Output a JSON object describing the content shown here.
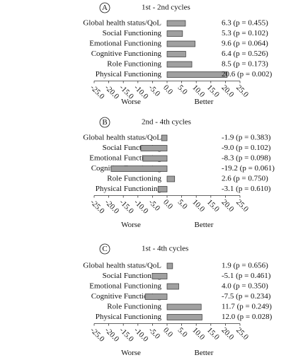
{
  "chart_data": [
    {
      "type": "barh",
      "panel": "A",
      "title": "1st - 2nd cycles",
      "categories": [
        "Global health status/QoL",
        "Social Functioning",
        "Emotional Functioning",
        "Cognitive Functioning",
        "Role Functioning",
        "Physical Functioning"
      ],
      "values": [
        6.3,
        5.3,
        9.6,
        6.4,
        8.5,
        20.6
      ],
      "value_labels": [
        "6.3 (p = 0.455)",
        "5.3 (p = 0.102)",
        "9.6 (p = 0.064)",
        "6.4 (p = 0.526)",
        "8.5 (p = 0.173)",
        "20.6 (p = 0.002)"
      ],
      "color": "#a0a0a0",
      "xlim": [
        -25,
        25
      ],
      "xticks": [
        {
          "value": -25,
          "label": "-25.0"
        },
        {
          "value": -20,
          "label": "-20.0"
        },
        {
          "value": -15,
          "label": "-15.0"
        },
        {
          "value": -10,
          "label": "-10.0"
        },
        {
          "value": -5,
          "label": "-5.0"
        },
        {
          "value": 0,
          "label": "0.0"
        },
        {
          "value": 5,
          "label": "5.0"
        },
        {
          "value": 10,
          "label": "10.0"
        },
        {
          "value": 15,
          "label": "15.0"
        },
        {
          "value": 20,
          "label": "20.0"
        },
        {
          "value": 25,
          "label": "25.0"
        }
      ],
      "xlabel_left": "Worse",
      "xlabel_right": "Better"
    },
    {
      "type": "barh",
      "panel": "B",
      "title": "2nd - 4th cycles",
      "categories": [
        "Global health status/QoL",
        "Social Functioning",
        "Emotional Functioning",
        "Cognitive Functioning",
        "Role Functioning",
        "Physical Functioning"
      ],
      "values": [
        -1.9,
        -9.0,
        -8.3,
        -19.2,
        2.6,
        -3.1
      ],
      "value_labels": [
        "-1.9 (p = 0.383)",
        "-9.0 (p = 0.102)",
        "-8.3 (p = 0.098)",
        "-19.2 (p = 0.061)",
        "2.6 (p = 0.750)",
        "-3.1 (p = 0.610)"
      ],
      "color": "#a0a0a0",
      "xlim": [
        -25,
        25
      ],
      "xticks": [
        {
          "value": -25,
          "label": "-25.0"
        },
        {
          "value": -20,
          "label": "-20.0"
        },
        {
          "value": -15,
          "label": "-15.0"
        },
        {
          "value": -10,
          "label": "-10.0"
        },
        {
          "value": -5,
          "label": "-5.0"
        },
        {
          "value": 0,
          "label": "0.0"
        },
        {
          "value": 5,
          "label": "5.0"
        },
        {
          "value": 10,
          "label": "10.0"
        },
        {
          "value": 15,
          "label": "15.0"
        },
        {
          "value": 20,
          "label": "20.0"
        },
        {
          "value": 25,
          "label": "25.0"
        }
      ],
      "xlabel_left": "Worse",
      "xlabel_right": "Better"
    },
    {
      "type": "barh",
      "panel": "C",
      "title": "1st - 4th cycles",
      "categories": [
        "Global health status/QoL",
        "Social Functioning",
        "Emotional Functioning",
        "Cognitive Functioning",
        "Role Functioning",
        "Physical Functioning"
      ],
      "values": [
        1.9,
        -5.1,
        4.0,
        -7.5,
        11.7,
        12.0
      ],
      "value_labels": [
        "1.9 (p = 0.656)",
        "-5.1 (p = 0.461)",
        "4.0 (p = 0.350)",
        "-7.5 (p = 0.234)",
        "11.7 (p = 0.249)",
        "12.0 (p = 0.028)"
      ],
      "color": "#a0a0a0",
      "xlim": [
        -25,
        25
      ],
      "xticks": [
        {
          "value": -25,
          "label": "-25.0"
        },
        {
          "value": -20,
          "label": "-20.0"
        },
        {
          "value": -15,
          "label": "-15.0"
        },
        {
          "value": -10,
          "label": "-10.0"
        },
        {
          "value": -5,
          "label": "-5.0"
        },
        {
          "value": 0,
          "label": "0.0"
        },
        {
          "value": 5,
          "label": "5.0"
        },
        {
          "value": 10,
          "label": "10.0"
        },
        {
          "value": 15,
          "label": "15.0"
        },
        {
          "value": 20,
          "label": "20.0"
        },
        {
          "value": 25,
          "label": "25.0"
        }
      ],
      "xlabel_left": "Worse",
      "xlabel_right": "Better"
    }
  ]
}
